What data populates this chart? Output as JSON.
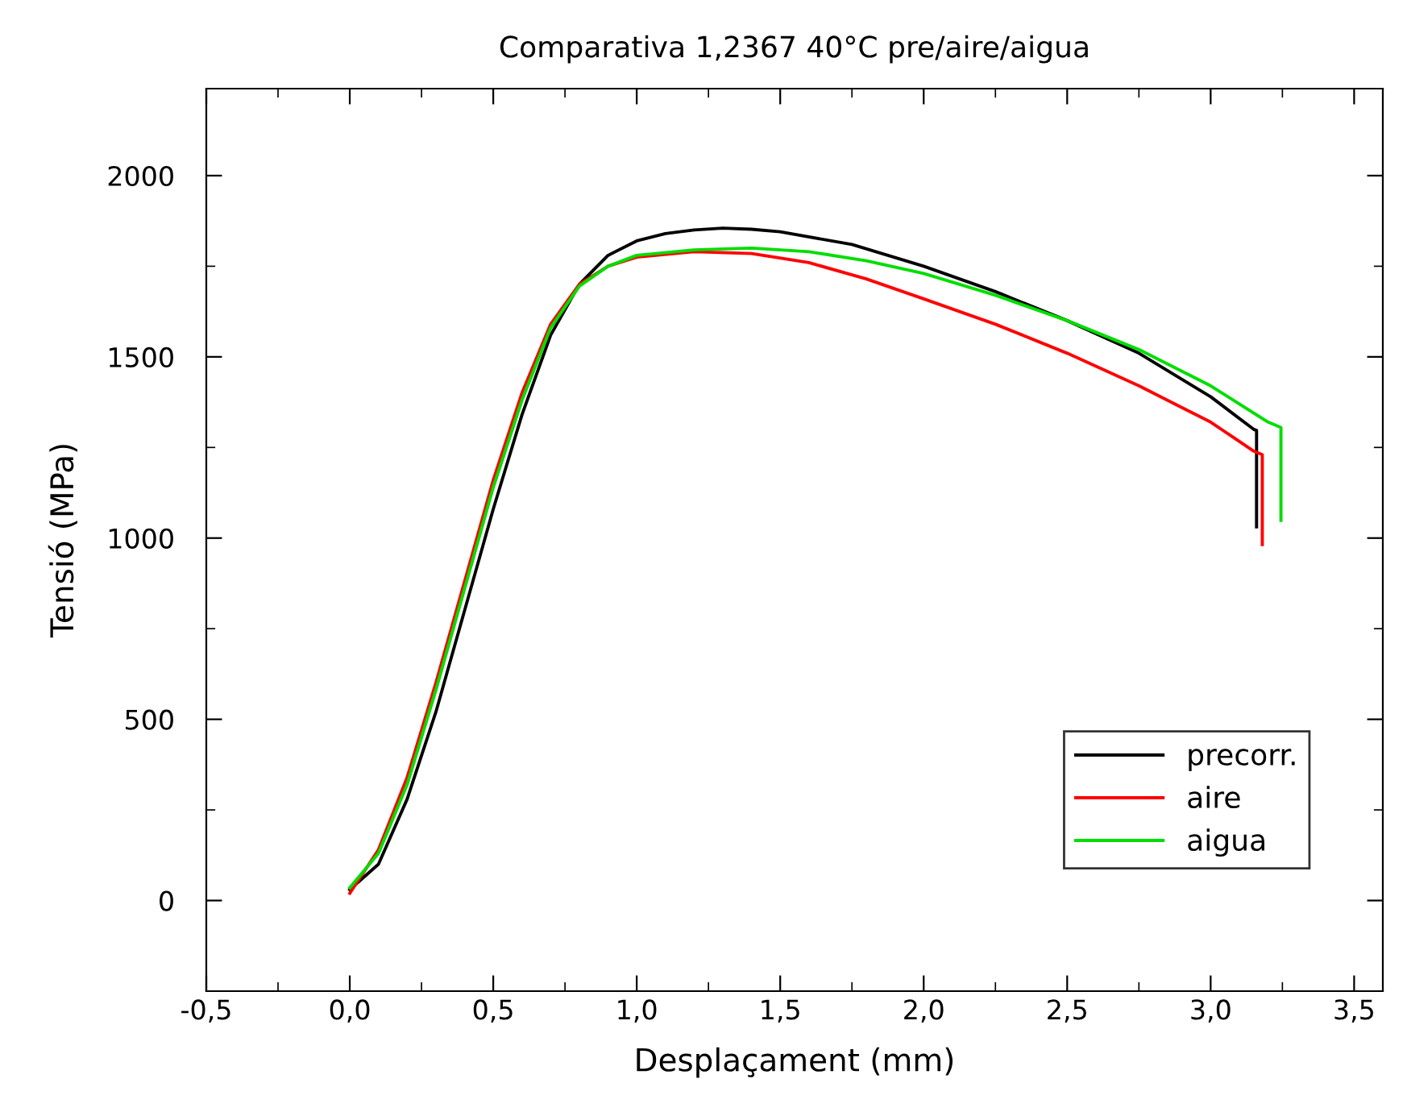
{
  "chart_data": {
    "type": "line",
    "title": "Comparativa 1,2367 40°C pre/aire/aigua",
    "xlabel": "Desplaçament (mm)",
    "ylabel": "Tensió (MPa)",
    "xlim": [
      -0.5,
      3.6
    ],
    "ylim": [
      -250,
      2240
    ],
    "xticks": [
      {
        "value": -0.5,
        "label": "-0,5"
      },
      {
        "value": 0,
        "label": "0,0"
      },
      {
        "value": 0.5,
        "label": "0,5"
      },
      {
        "value": 1,
        "label": "1,0"
      },
      {
        "value": 1.5,
        "label": "1,5"
      },
      {
        "value": 2,
        "label": "2,0"
      },
      {
        "value": 2.5,
        "label": "2,5"
      },
      {
        "value": 3,
        "label": "3,0"
      },
      {
        "value": 3.5,
        "label": "3,5"
      }
    ],
    "yticks": [
      0,
      500,
      1000,
      1500,
      2000
    ],
    "grid": false,
    "legend": "bottom right",
    "marker": "none",
    "line_style": "solid",
    "series": [
      {
        "name": "precorr.",
        "color": "#000000",
        "x": [
          0.0,
          0.1,
          0.2,
          0.3,
          0.4,
          0.5,
          0.6,
          0.7,
          0.8,
          0.9,
          1.0,
          1.1,
          1.2,
          1.3,
          1.4,
          1.5,
          1.75,
          2.0,
          2.25,
          2.5,
          2.75,
          3.0,
          3.15,
          3.16,
          3.16
        ],
        "values": [
          30,
          100,
          280,
          520,
          800,
          1080,
          1340,
          1560,
          1700,
          1780,
          1820,
          1840,
          1850,
          1855,
          1852,
          1845,
          1810,
          1750,
          1680,
          1600,
          1510,
          1390,
          1300,
          1297,
          1031
        ]
      },
      {
        "name": "aire",
        "color": "#ff0000",
        "x": [
          0.0,
          0.1,
          0.2,
          0.3,
          0.4,
          0.5,
          0.6,
          0.7,
          0.8,
          0.9,
          1.0,
          1.2,
          1.4,
          1.6,
          1.8,
          2.0,
          2.25,
          2.5,
          2.75,
          3.0,
          3.15,
          3.18,
          3.18
        ],
        "values": [
          20,
          140,
          340,
          600,
          880,
          1160,
          1400,
          1590,
          1700,
          1750,
          1775,
          1790,
          1785,
          1760,
          1715,
          1660,
          1590,
          1510,
          1420,
          1320,
          1240,
          1230,
          982
        ]
      },
      {
        "name": "aigua",
        "color": "#00dd00",
        "x": [
          0.0,
          0.1,
          0.2,
          0.3,
          0.4,
          0.5,
          0.6,
          0.7,
          0.8,
          0.9,
          1.0,
          1.2,
          1.4,
          1.6,
          1.8,
          2.0,
          2.25,
          2.5,
          2.75,
          3.0,
          3.2,
          3.245,
          3.245
        ],
        "values": [
          35,
          130,
          320,
          580,
          860,
          1140,
          1380,
          1580,
          1695,
          1750,
          1780,
          1795,
          1800,
          1790,
          1765,
          1730,
          1670,
          1600,
          1520,
          1420,
          1320,
          1305,
          1049
        ]
      }
    ]
  }
}
